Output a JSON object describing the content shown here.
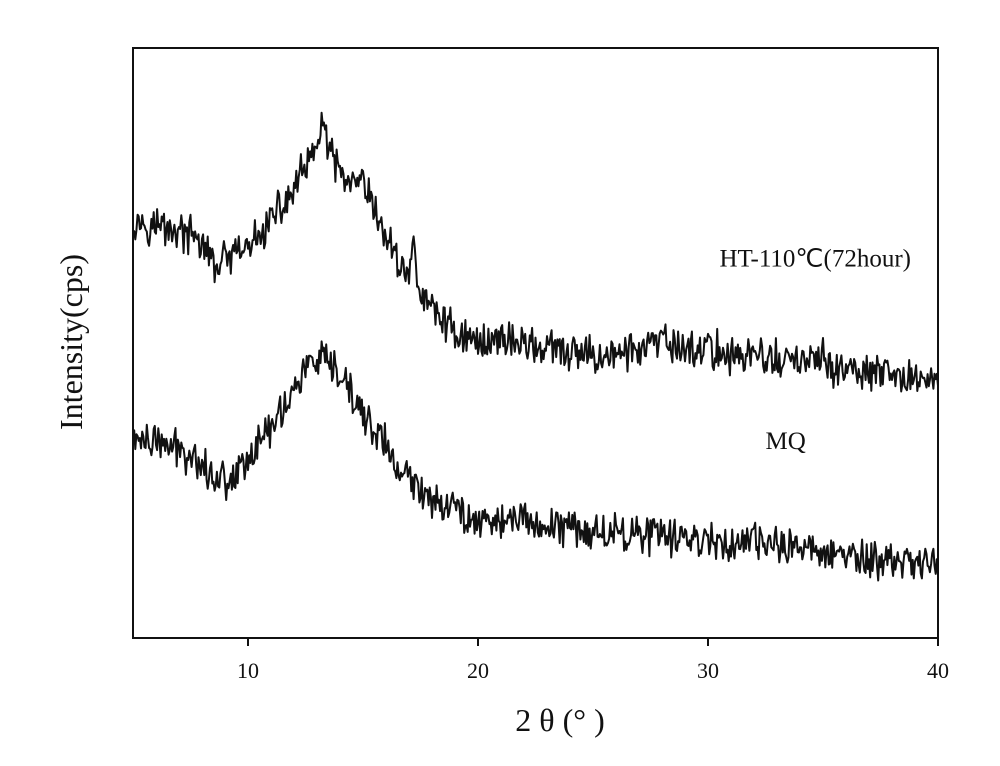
{
  "chart_data": {
    "type": "line",
    "title": "",
    "xlabel": "2 θ (° )",
    "ylabel": "Intensity(cps)",
    "xlim": [
      5,
      40
    ],
    "ylim": [
      0,
      100
    ],
    "xticks": [
      10,
      20,
      30,
      40
    ],
    "yticks_shown": false,
    "grid": false,
    "legend": "none",
    "line_color": "#111111",
    "series": [
      {
        "name": "HT-110℃(72hour)",
        "x": [
          5,
          6,
          7,
          8,
          8.5,
          9,
          10,
          10.5,
          11,
          11.5,
          12,
          12.5,
          13,
          13.2,
          13.5,
          14,
          14.5,
          15,
          15.5,
          16,
          16.5,
          17,
          17.2,
          17.5,
          18,
          19,
          20,
          21,
          22,
          23,
          24,
          25,
          26,
          27,
          28,
          29,
          30,
          31,
          32,
          33,
          34,
          35,
          36,
          37,
          38,
          39,
          40
        ],
        "values": [
          71,
          70,
          69,
          67,
          63,
          64,
          66,
          68,
          71,
          73,
          76,
          80,
          82,
          89,
          82,
          79,
          76,
          77,
          72,
          68,
          64,
          62,
          66,
          58,
          56,
          52,
          50,
          51,
          50,
          49,
          48,
          48,
          48,
          49,
          50,
          49,
          49,
          48,
          48,
          47,
          47,
          47,
          45,
          45,
          44,
          44,
          44
        ],
        "noise": 2.6
      },
      {
        "name": "MQ",
        "x": [
          5,
          6,
          7,
          8,
          8.5,
          9,
          9.5,
          10,
          10.5,
          11,
          11.5,
          12,
          12.5,
          13,
          13.5,
          14,
          14.5,
          15,
          15.5,
          16,
          16.5,
          17,
          17.5,
          18,
          19,
          20,
          21,
          22,
          23,
          24,
          25,
          26,
          27,
          28,
          29,
          30,
          31,
          32,
          33,
          34,
          35,
          36,
          37,
          38,
          39,
          40
        ],
        "values": [
          34,
          33,
          32,
          30,
          27,
          27,
          28,
          31,
          33,
          36,
          39,
          42,
          46,
          47,
          46,
          44,
          41,
          38,
          35,
          33,
          28,
          27,
          25,
          24,
          22,
          20,
          20,
          20,
          19,
          19,
          18,
          18,
          18,
          17,
          17,
          17,
          16,
          16,
          16,
          15,
          15,
          14,
          13,
          13,
          13,
          13
        ],
        "noise": 2.6
      }
    ],
    "annotations": [
      {
        "text": "HT-110℃(72hour)",
        "x": 30.5,
        "y": 63
      },
      {
        "text": "MQ",
        "x": 32.5,
        "y": 32
      }
    ]
  }
}
